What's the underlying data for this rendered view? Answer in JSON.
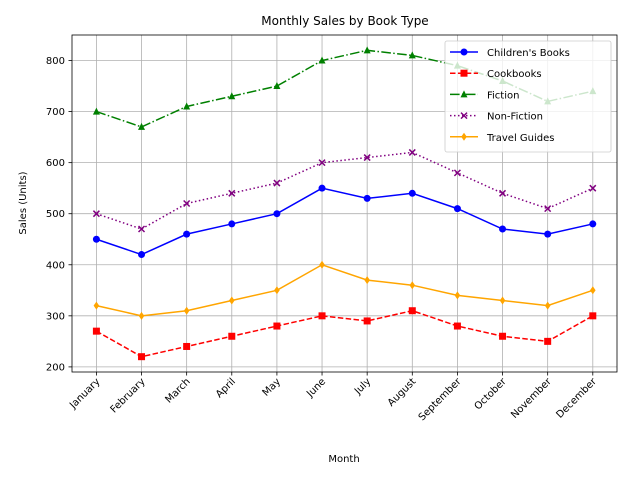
{
  "chart_data": {
    "type": "line",
    "title": "Monthly Sales by Book Type",
    "xlabel": "Month",
    "ylabel": "Sales (Units)",
    "categories": [
      "January",
      "February",
      "March",
      "April",
      "May",
      "June",
      "July",
      "August",
      "September",
      "October",
      "November",
      "December"
    ],
    "ylim": [
      190,
      850
    ],
    "yticks": [
      200,
      300,
      400,
      500,
      600,
      700,
      800
    ],
    "grid": true,
    "legend_position": "top-right",
    "series": [
      {
        "name": "Children's Books",
        "color": "#0000ff",
        "line_style": "solid",
        "marker": "circle",
        "values": [
          450,
          420,
          460,
          480,
          500,
          550,
          530,
          540,
          510,
          470,
          460,
          480
        ]
      },
      {
        "name": "Cookbooks",
        "color": "#ff0000",
        "line_style": "dashed",
        "marker": "square",
        "values": [
          270,
          220,
          240,
          260,
          280,
          300,
          290,
          310,
          280,
          260,
          250,
          300
        ]
      },
      {
        "name": "Fiction",
        "color": "#008000",
        "line_style": "dashdot",
        "marker": "triangle",
        "values": [
          700,
          670,
          710,
          730,
          750,
          800,
          820,
          810,
          790,
          760,
          720,
          740
        ]
      },
      {
        "name": "Non-Fiction",
        "color": "#800080",
        "line_style": "dotted",
        "marker": "x",
        "values": [
          500,
          470,
          520,
          540,
          560,
          600,
          610,
          620,
          580,
          540,
          510,
          550
        ]
      },
      {
        "name": "Travel Guides",
        "color": "#ffa500",
        "line_style": "solid",
        "marker": "diamond",
        "values": [
          320,
          300,
          310,
          330,
          350,
          400,
          370,
          360,
          340,
          330,
          320,
          350
        ]
      }
    ]
  }
}
